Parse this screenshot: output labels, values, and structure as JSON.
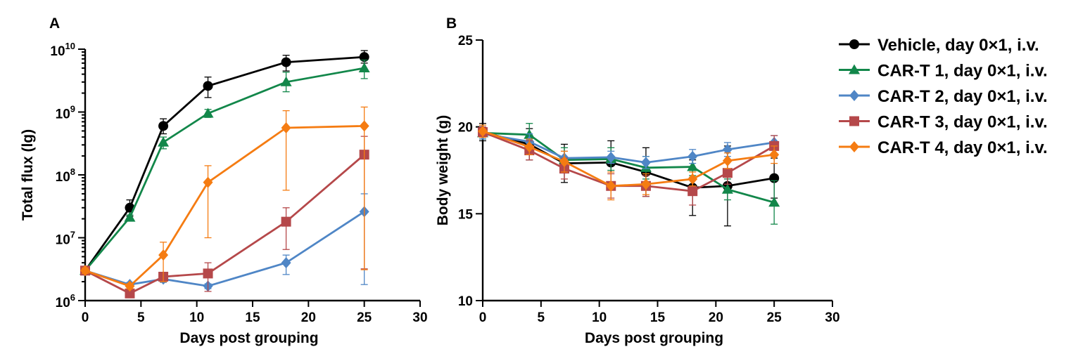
{
  "chart_data": [
    {
      "type": "line",
      "panel_label": "A",
      "xlabel": "Days post grouping",
      "ylabel": "Total flux (lg)",
      "xlim": [
        0,
        30
      ],
      "ylim": [
        1000000,
        10000000000
      ],
      "y_scale": "log",
      "x_ticks": [
        0,
        5,
        10,
        15,
        20,
        25,
        30
      ],
      "y_ticks": [
        {
          "value": 1000000,
          "base": "10",
          "exp": "6"
        },
        {
          "value": 10000000,
          "base": "10",
          "exp": "7"
        },
        {
          "value": 100000000,
          "base": "10",
          "exp": "8"
        },
        {
          "value": 1000000000,
          "base": "10",
          "exp": "9"
        },
        {
          "value": 10000000000,
          "base": "10",
          "exp": "10"
        }
      ],
      "series": [
        {
          "name": "Vehicle, day 0×1, i.v.",
          "color": "#000000",
          "marker": "circle",
          "x": [
            0,
            4,
            7,
            11,
            18,
            25
          ],
          "y": [
            3000000,
            30000000,
            600000000,
            2600000000,
            6200000000,
            7500000000
          ],
          "err_low": [
            2700000,
            22000000,
            450000000,
            1700000000,
            4500000000,
            6000000000
          ],
          "err_high": [
            3300000,
            40000000,
            780000000,
            3600000000,
            8000000000,
            9500000000
          ]
        },
        {
          "name": "CAR-T 1, day 0×1, i.v.",
          "color": "#12874a",
          "marker": "triangle",
          "x": [
            0,
            4,
            7,
            11,
            18,
            25
          ],
          "y": [
            3000000,
            21000000,
            330000000,
            950000000,
            3000000000,
            5000000000
          ],
          "err_low": [
            2700000,
            19000000,
            260000000,
            820000000,
            2100000000,
            3400000000
          ],
          "err_high": [
            3300000,
            23000000,
            400000000,
            1100000000,
            4300000000,
            6700000000
          ]
        },
        {
          "name": "CAR-T 2, day 0×1, i.v.",
          "color": "#4f86c6",
          "marker": "diamond",
          "x": [
            0,
            4,
            7,
            11,
            18,
            25
          ],
          "y": [
            3000000,
            1800000,
            2200000,
            1700000,
            4000000,
            26000000
          ],
          "err_low": [
            2700000,
            1650000,
            1950000,
            1550000,
            2600000,
            1800000
          ],
          "err_high": [
            3300000,
            1950000,
            2450000,
            1850000,
            5300000,
            50000000
          ]
        },
        {
          "name": "CAR-T 3, day 0×1, i.v.",
          "color": "#b5484a",
          "marker": "square",
          "x": [
            0,
            4,
            7,
            11,
            18,
            25
          ],
          "y": [
            3000000,
            1300000,
            2400000,
            2700000,
            18000000,
            210000000
          ],
          "err_low": [
            2700000,
            1200000,
            2000000,
            1400000,
            6500000,
            3200000
          ],
          "err_high": [
            3300000,
            1400000,
            2800000,
            4000000,
            30000000,
            410000000
          ]
        },
        {
          "name": "CAR-T 4, day 0×1, i.v.",
          "color": "#f57c12",
          "marker": "diamond",
          "x": [
            0,
            4,
            7,
            11,
            18,
            25
          ],
          "y": [
            3000000,
            1700000,
            5300000,
            76000000,
            560000000,
            600000000
          ],
          "err_low": [
            2700000,
            1550000,
            2000000,
            10000000,
            57000000,
            3100000
          ],
          "err_high": [
            3300000,
            1850000,
            8500000,
            140000000,
            1050000000,
            1200000000
          ]
        }
      ]
    },
    {
      "type": "line",
      "panel_label": "B",
      "xlabel": "Days post grouping",
      "ylabel": "Body weight (g)",
      "xlim": [
        0,
        30
      ],
      "ylim": [
        10,
        25
      ],
      "y_scale": "linear",
      "x_ticks": [
        0,
        5,
        10,
        15,
        20,
        25,
        30
      ],
      "y_ticks": [
        10,
        15,
        20,
        25
      ],
      "series": [
        {
          "name": "Vehicle, day 0×1, i.v.",
          "color": "#000000",
          "marker": "circle",
          "x": [
            0,
            4,
            7,
            11,
            14,
            18,
            21,
            25
          ],
          "y": [
            19.7,
            19.0,
            17.9,
            17.95,
            17.4,
            16.5,
            16.6,
            17.05
          ],
          "err_low": [
            19.2,
            18.1,
            16.8,
            16.7,
            16.0,
            14.9,
            14.3,
            15.9
          ],
          "err_high": [
            20.2,
            19.9,
            19.0,
            19.2,
            18.8,
            18.1,
            18.9,
            18.2
          ]
        },
        {
          "name": "CAR-T 1, day 0×1, i.v.",
          "color": "#12874a",
          "marker": "triangle",
          "x": [
            0,
            4,
            7,
            11,
            14,
            18,
            21,
            25
          ],
          "y": [
            19.65,
            19.55,
            18.1,
            18.15,
            17.65,
            17.7,
            16.4,
            15.65
          ],
          "err_low": [
            19.3,
            18.9,
            17.4,
            17.5,
            17.0,
            17.2,
            15.8,
            14.4
          ],
          "err_high": [
            20.0,
            20.2,
            18.8,
            18.8,
            18.3,
            18.2,
            17.0,
            16.9
          ]
        },
        {
          "name": "CAR-T 2, day 0×1, i.v.",
          "color": "#4f86c6",
          "marker": "diamond",
          "x": [
            0,
            4,
            7,
            11,
            14,
            18,
            21,
            25
          ],
          "y": [
            19.6,
            19.15,
            18.2,
            18.25,
            17.95,
            18.3,
            18.7,
            19.1
          ],
          "err_low": [
            19.3,
            18.7,
            17.8,
            17.9,
            17.6,
            17.9,
            18.3,
            18.7
          ],
          "err_high": [
            19.9,
            19.6,
            18.6,
            18.6,
            18.3,
            18.7,
            19.1,
            19.5
          ]
        },
        {
          "name": "CAR-T 3, day 0×1, i.v.",
          "color": "#b5484a",
          "marker": "square",
          "x": [
            0,
            4,
            7,
            11,
            14,
            18,
            21,
            25
          ],
          "y": [
            19.7,
            18.65,
            17.6,
            16.6,
            16.6,
            16.3,
            17.35,
            18.9
          ],
          "err_low": [
            19.4,
            18.1,
            17.0,
            15.9,
            16.0,
            15.5,
            16.7,
            18.3
          ],
          "err_high": [
            20.0,
            19.2,
            18.2,
            17.3,
            17.2,
            17.1,
            18.0,
            19.5
          ]
        },
        {
          "name": "CAR-T 4, day 0×1, i.v.",
          "color": "#f57c12",
          "marker": "diamond",
          "x": [
            0,
            4,
            7,
            11,
            14,
            18,
            21,
            25
          ],
          "y": [
            19.75,
            18.85,
            18.0,
            16.6,
            16.7,
            17.0,
            18.05,
            18.4
          ],
          "err_low": [
            19.4,
            18.4,
            17.4,
            15.8,
            16.1,
            16.6,
            17.6,
            17.9
          ],
          "err_high": [
            20.1,
            19.3,
            18.6,
            17.4,
            17.3,
            17.4,
            18.5,
            18.9
          ]
        }
      ]
    }
  ],
  "legend": {
    "placement": "right",
    "items": [
      {
        "label": "Vehicle, day 0×1, i.v.",
        "color": "#000000",
        "marker": "circle"
      },
      {
        "label": "CAR-T 1, day 0×1, i.v.",
        "color": "#12874a",
        "marker": "triangle"
      },
      {
        "label": "CAR-T 2, day 0×1, i.v.",
        "color": "#4f86c6",
        "marker": "diamond"
      },
      {
        "label": "CAR-T 3, day 0×1, i.v.",
        "color": "#b5484a",
        "marker": "square"
      },
      {
        "label": "CAR-T 4, day 0×1, i.v.",
        "color": "#f57c12",
        "marker": "diamond"
      }
    ]
  }
}
